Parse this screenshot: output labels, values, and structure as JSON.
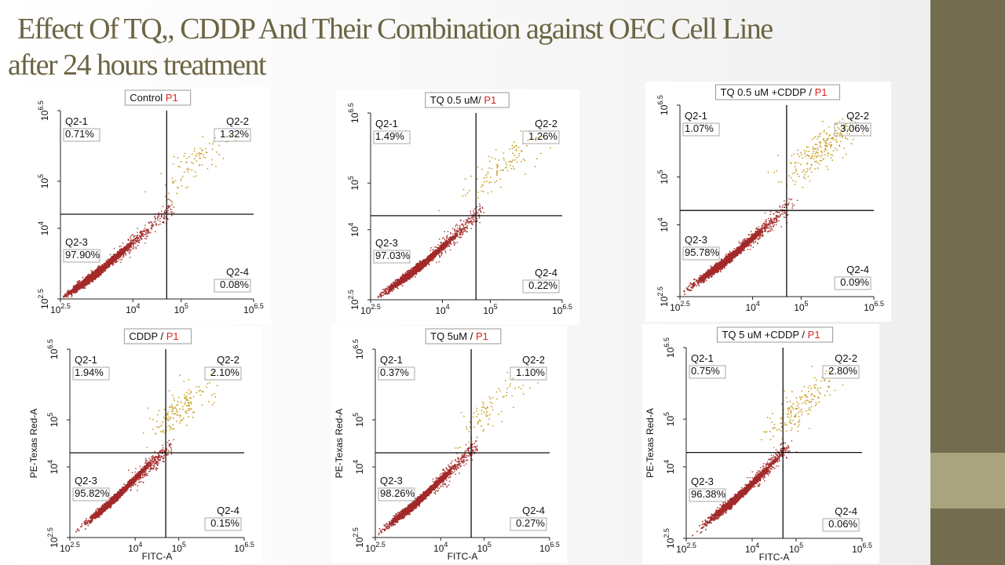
{
  "slide": {
    "title_line1": "Effect Of  TQ,, CDDP And Their Combination against  OEC Cell Line",
    "title_line2": "after 24 hours treatment",
    "accent_dark": "#736c4f",
    "accent_light": "#a9a47d",
    "title_color": "#6b6544"
  },
  "chart_data": [
    {
      "type": "scatter",
      "title": "Control",
      "gate": "P1",
      "xlabel": "",
      "ylabel": "",
      "x_ticks": [
        "10",
        "10",
        "10",
        "10"
      ],
      "x_tick_exps": [
        "2.5",
        "4",
        "5",
        "6.5"
      ],
      "y_ticks": [
        "10",
        "10",
        "10",
        "10"
      ],
      "y_tick_exps": [
        "2.5",
        "4",
        "5",
        "6.5"
      ],
      "xlim": [
        2.5,
        6.5
      ],
      "ylim": [
        2.5,
        6.5
      ],
      "scale": "log10",
      "quadrant_x": 4.7,
      "quadrant_y": 4.3,
      "quadrants": [
        {
          "name": "Q2-1",
          "value": "0.71%"
        },
        {
          "name": "Q2-2",
          "value": "1.32%"
        },
        {
          "name": "Q2-3",
          "value": "97.90%"
        },
        {
          "name": "Q2-4",
          "value": "0.08%"
        }
      ],
      "population_color": "#a32a2a",
      "apoptotic_color": "#c9a227"
    },
    {
      "type": "scatter",
      "title": "TQ 0.5 uM/",
      "gate": "P1",
      "xlabel": "",
      "ylabel": "",
      "x_ticks": [
        "10",
        "10",
        "10",
        "10"
      ],
      "x_tick_exps": [
        "2.5",
        "4",
        "5",
        "6.5"
      ],
      "y_ticks": [
        "10",
        "10",
        "10",
        "10"
      ],
      "y_tick_exps": [
        "2.5",
        "4",
        "5",
        "6.5"
      ],
      "xlim": [
        2.5,
        6.5
      ],
      "ylim": [
        2.5,
        6.5
      ],
      "scale": "log10",
      "quadrant_x": 4.7,
      "quadrant_y": 4.3,
      "quadrants": [
        {
          "name": "Q2-1",
          "value": "1.49%"
        },
        {
          "name": "Q2-2",
          "value": "1.26%"
        },
        {
          "name": "Q2-3",
          "value": "97.03%"
        },
        {
          "name": "Q2-4",
          "value": "0.22%"
        }
      ],
      "population_color": "#a32a2a",
      "apoptotic_color": "#c9a227"
    },
    {
      "type": "scatter",
      "title": "TQ 0.5 uM +CDDP /",
      "gate": "P1",
      "xlabel": "",
      "ylabel": "",
      "x_ticks": [
        "10",
        "10",
        "10",
        "10"
      ],
      "x_tick_exps": [
        "2.5",
        "4",
        "5",
        "6.5"
      ],
      "y_ticks": [
        "10",
        "10",
        "10",
        "10"
      ],
      "y_tick_exps": [
        "2.5",
        "4",
        "5",
        "6.5"
      ],
      "xlim": [
        2.5,
        6.5
      ],
      "ylim": [
        2.5,
        6.5
      ],
      "scale": "log10",
      "quadrant_x": 4.7,
      "quadrant_y": 4.3,
      "quadrants": [
        {
          "name": "Q2-1",
          "value": "1.07%"
        },
        {
          "name": "Q2-2",
          "value": "3.06%"
        },
        {
          "name": "Q2-3",
          "value": "95.78%"
        },
        {
          "name": "Q2-4",
          "value": "0.09%"
        }
      ],
      "population_color": "#a32a2a",
      "apoptotic_color": "#c9a227"
    },
    {
      "type": "scatter",
      "title": "CDDP /",
      "gate": "P1",
      "xlabel": "FITC-A",
      "ylabel": "PE-Texas Red-A",
      "x_ticks": [
        "10",
        "10",
        "10",
        "10"
      ],
      "x_tick_exps": [
        "2.5",
        "4",
        "5",
        "6.5"
      ],
      "y_ticks": [
        "10",
        "10",
        "10",
        "10"
      ],
      "y_tick_exps": [
        "2.5",
        "4",
        "5",
        "6.5"
      ],
      "xlim": [
        2.5,
        6.5
      ],
      "ylim": [
        2.5,
        6.5
      ],
      "scale": "log10",
      "quadrant_x": 4.7,
      "quadrant_y": 4.3,
      "quadrants": [
        {
          "name": "Q2-1",
          "value": "1.94%"
        },
        {
          "name": "Q2-2",
          "value": "2.10%"
        },
        {
          "name": "Q2-3",
          "value": "95.82%"
        },
        {
          "name": "Q2-4",
          "value": "0.15%"
        }
      ],
      "population_color": "#a32a2a",
      "apoptotic_color": "#c9a227"
    },
    {
      "type": "scatter",
      "title": "TQ 5uM /",
      "gate": "P1",
      "xlabel": "FITC-A",
      "ylabel": "PE-Texas Red-A",
      "x_ticks": [
        "10",
        "10",
        "10",
        "10"
      ],
      "x_tick_exps": [
        "2.5",
        "4",
        "5",
        "6.5"
      ],
      "y_ticks": [
        "10",
        "10",
        "10",
        "10"
      ],
      "y_tick_exps": [
        "2.5",
        "4",
        "5",
        "6.5"
      ],
      "xlim": [
        2.5,
        6.5
      ],
      "ylim": [
        2.5,
        6.5
      ],
      "scale": "log10",
      "quadrant_x": 4.7,
      "quadrant_y": 4.3,
      "quadrants": [
        {
          "name": "Q2-1",
          "value": "0.37%"
        },
        {
          "name": "Q2-2",
          "value": "1.10%"
        },
        {
          "name": "Q2-3",
          "value": "98.26%"
        },
        {
          "name": "Q2-4",
          "value": "0.27%"
        }
      ],
      "population_color": "#a32a2a",
      "apoptotic_color": "#c9a227"
    },
    {
      "type": "scatter",
      "title": "TQ 5 uM +CDDP /",
      "gate": "P1",
      "xlabel": "FITC-A",
      "ylabel": "PE-Texas Red-A",
      "x_ticks": [
        "10",
        "10",
        "10",
        "10"
      ],
      "x_tick_exps": [
        "2.5",
        "4",
        "5",
        "6.5"
      ],
      "y_ticks": [
        "10",
        "10",
        "10",
        "10"
      ],
      "y_tick_exps": [
        "2.5",
        "4",
        "5",
        "6.5"
      ],
      "xlim": [
        2.5,
        6.5
      ],
      "ylim": [
        2.5,
        6.5
      ],
      "scale": "log10",
      "quadrant_x": 4.7,
      "quadrant_y": 4.3,
      "quadrants": [
        {
          "name": "Q2-1",
          "value": "0.75%"
        },
        {
          "name": "Q2-2",
          "value": "2.80%"
        },
        {
          "name": "Q2-3",
          "value": "96.38%"
        },
        {
          "name": "Q2-4",
          "value": "0.06%"
        }
      ],
      "population_color": "#a32a2a",
      "apoptotic_color": "#c9a227"
    }
  ]
}
